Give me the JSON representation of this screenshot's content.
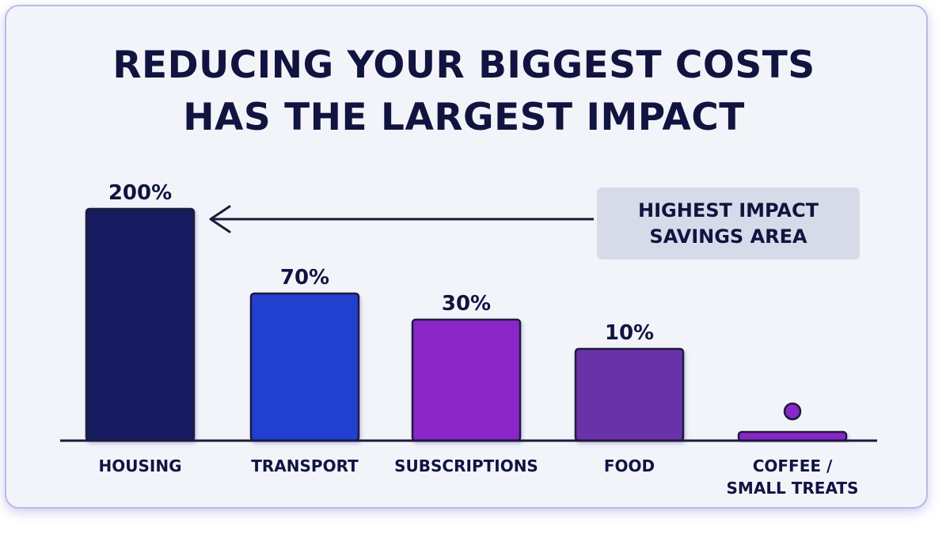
{
  "title_lines": [
    "REDUCING YOUR BIGGEST COSTS",
    "HAS THE LARGEST IMPACT"
  ],
  "annotation": {
    "lines": [
      "HIGHEST IMPACT",
      "SAVINGS AREA"
    ],
    "points_to": "HOUSING"
  },
  "colors": {
    "background": "#f3f4fa",
    "title": "#10143f",
    "axis": "#1a1c3a",
    "annotation_box": "#d7dbe9"
  },
  "chart_data": {
    "type": "bar",
    "title": "REDUCING YOUR BIGGEST COSTS HAS THE LARGEST IMPACT",
    "xlabel": "",
    "ylabel": "",
    "categories": [
      {
        "lines": [
          "HOUSING"
        ]
      },
      {
        "lines": [
          "TRANSPORT"
        ]
      },
      {
        "lines": [
          "SUBSCRIPTIONS"
        ]
      },
      {
        "lines": [
          "FOOD"
        ]
      },
      {
        "lines": [
          "COFFEE /",
          "SMALL TREATS"
        ]
      }
    ],
    "values": [
      200,
      70,
      30,
      10,
      2
    ],
    "data_labels": [
      "200%",
      "70%",
      "30%",
      "10%",
      ""
    ],
    "bar_colors": [
      "#171a5e",
      "#2340cf",
      "#8a27c8",
      "#6a30a8",
      "#8a27c8"
    ],
    "marker_on_last_bar": true,
    "ylim": [
      0,
      200
    ],
    "grid": false,
    "legend": "none"
  }
}
